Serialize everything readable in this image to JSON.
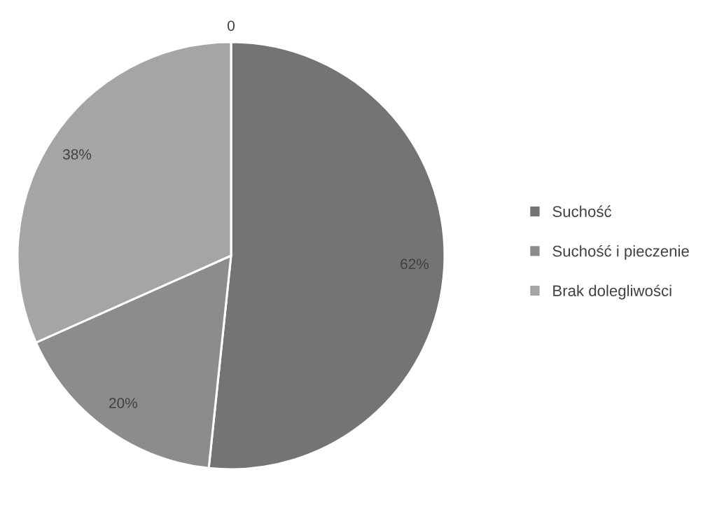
{
  "chart_data": {
    "type": "pie",
    "categories": [
      "Suchość",
      "Suchość i pieczenie",
      "Brak dolegliwości"
    ],
    "values": [
      62,
      20,
      38
    ],
    "colors": [
      "#757374",
      "#8c8c8c",
      "#a5a5a5"
    ],
    "value_labels": [
      "62%",
      "20%",
      "38%"
    ],
    "annotations": [
      "0"
    ],
    "legend": "right"
  }
}
